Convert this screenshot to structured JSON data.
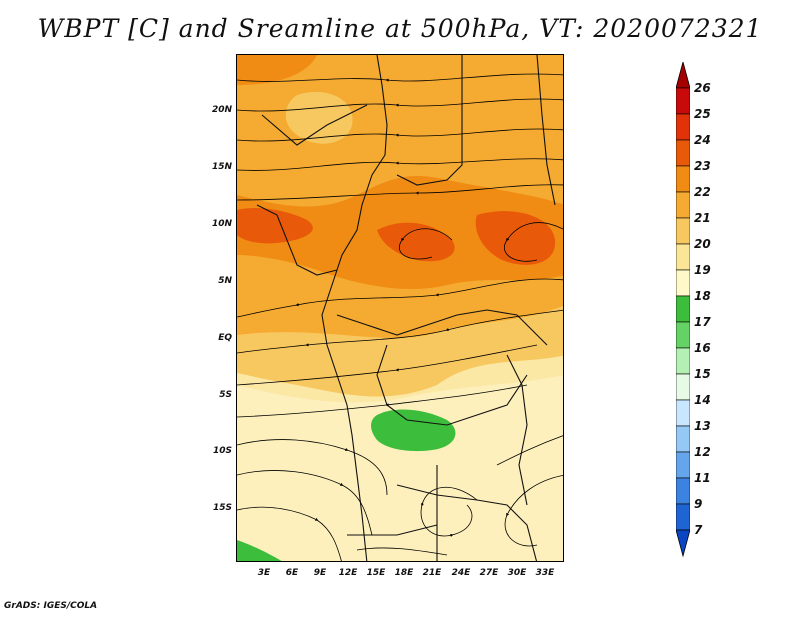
{
  "title": "WBPT [C] and Sreamline at 500hPa, VT: 2020072321",
  "footer": "GrADS: IGES/COLA",
  "map": {
    "lat_labels": [
      "20N",
      "15N",
      "10N",
      "5N",
      "EQ",
      "5S",
      "10S",
      "15S"
    ],
    "lon_labels": [
      "3E",
      "6E",
      "9E",
      "12E",
      "15E",
      "18E",
      "21E",
      "24E",
      "27E",
      "30E",
      "33E"
    ]
  },
  "colorbar": {
    "levels": [
      "26",
      "25",
      "24",
      "23",
      "22",
      "21",
      "20",
      "19",
      "18",
      "17",
      "16",
      "15",
      "14",
      "13",
      "12",
      "11",
      "9",
      "7"
    ],
    "colors": [
      "#a50000",
      "#c80a0a",
      "#e1320a",
      "#e85a0a",
      "#f08c14",
      "#f5aa32",
      "#f8c860",
      "#fae696",
      "#fff8c8",
      "#3cbe3c",
      "#64d264",
      "#b4f0b4",
      "#e6fae6",
      "#c8e6ff",
      "#96c8f5",
      "#64a5eb",
      "#3c82e1",
      "#1e64d2",
      "#0a46c3"
    ]
  }
}
